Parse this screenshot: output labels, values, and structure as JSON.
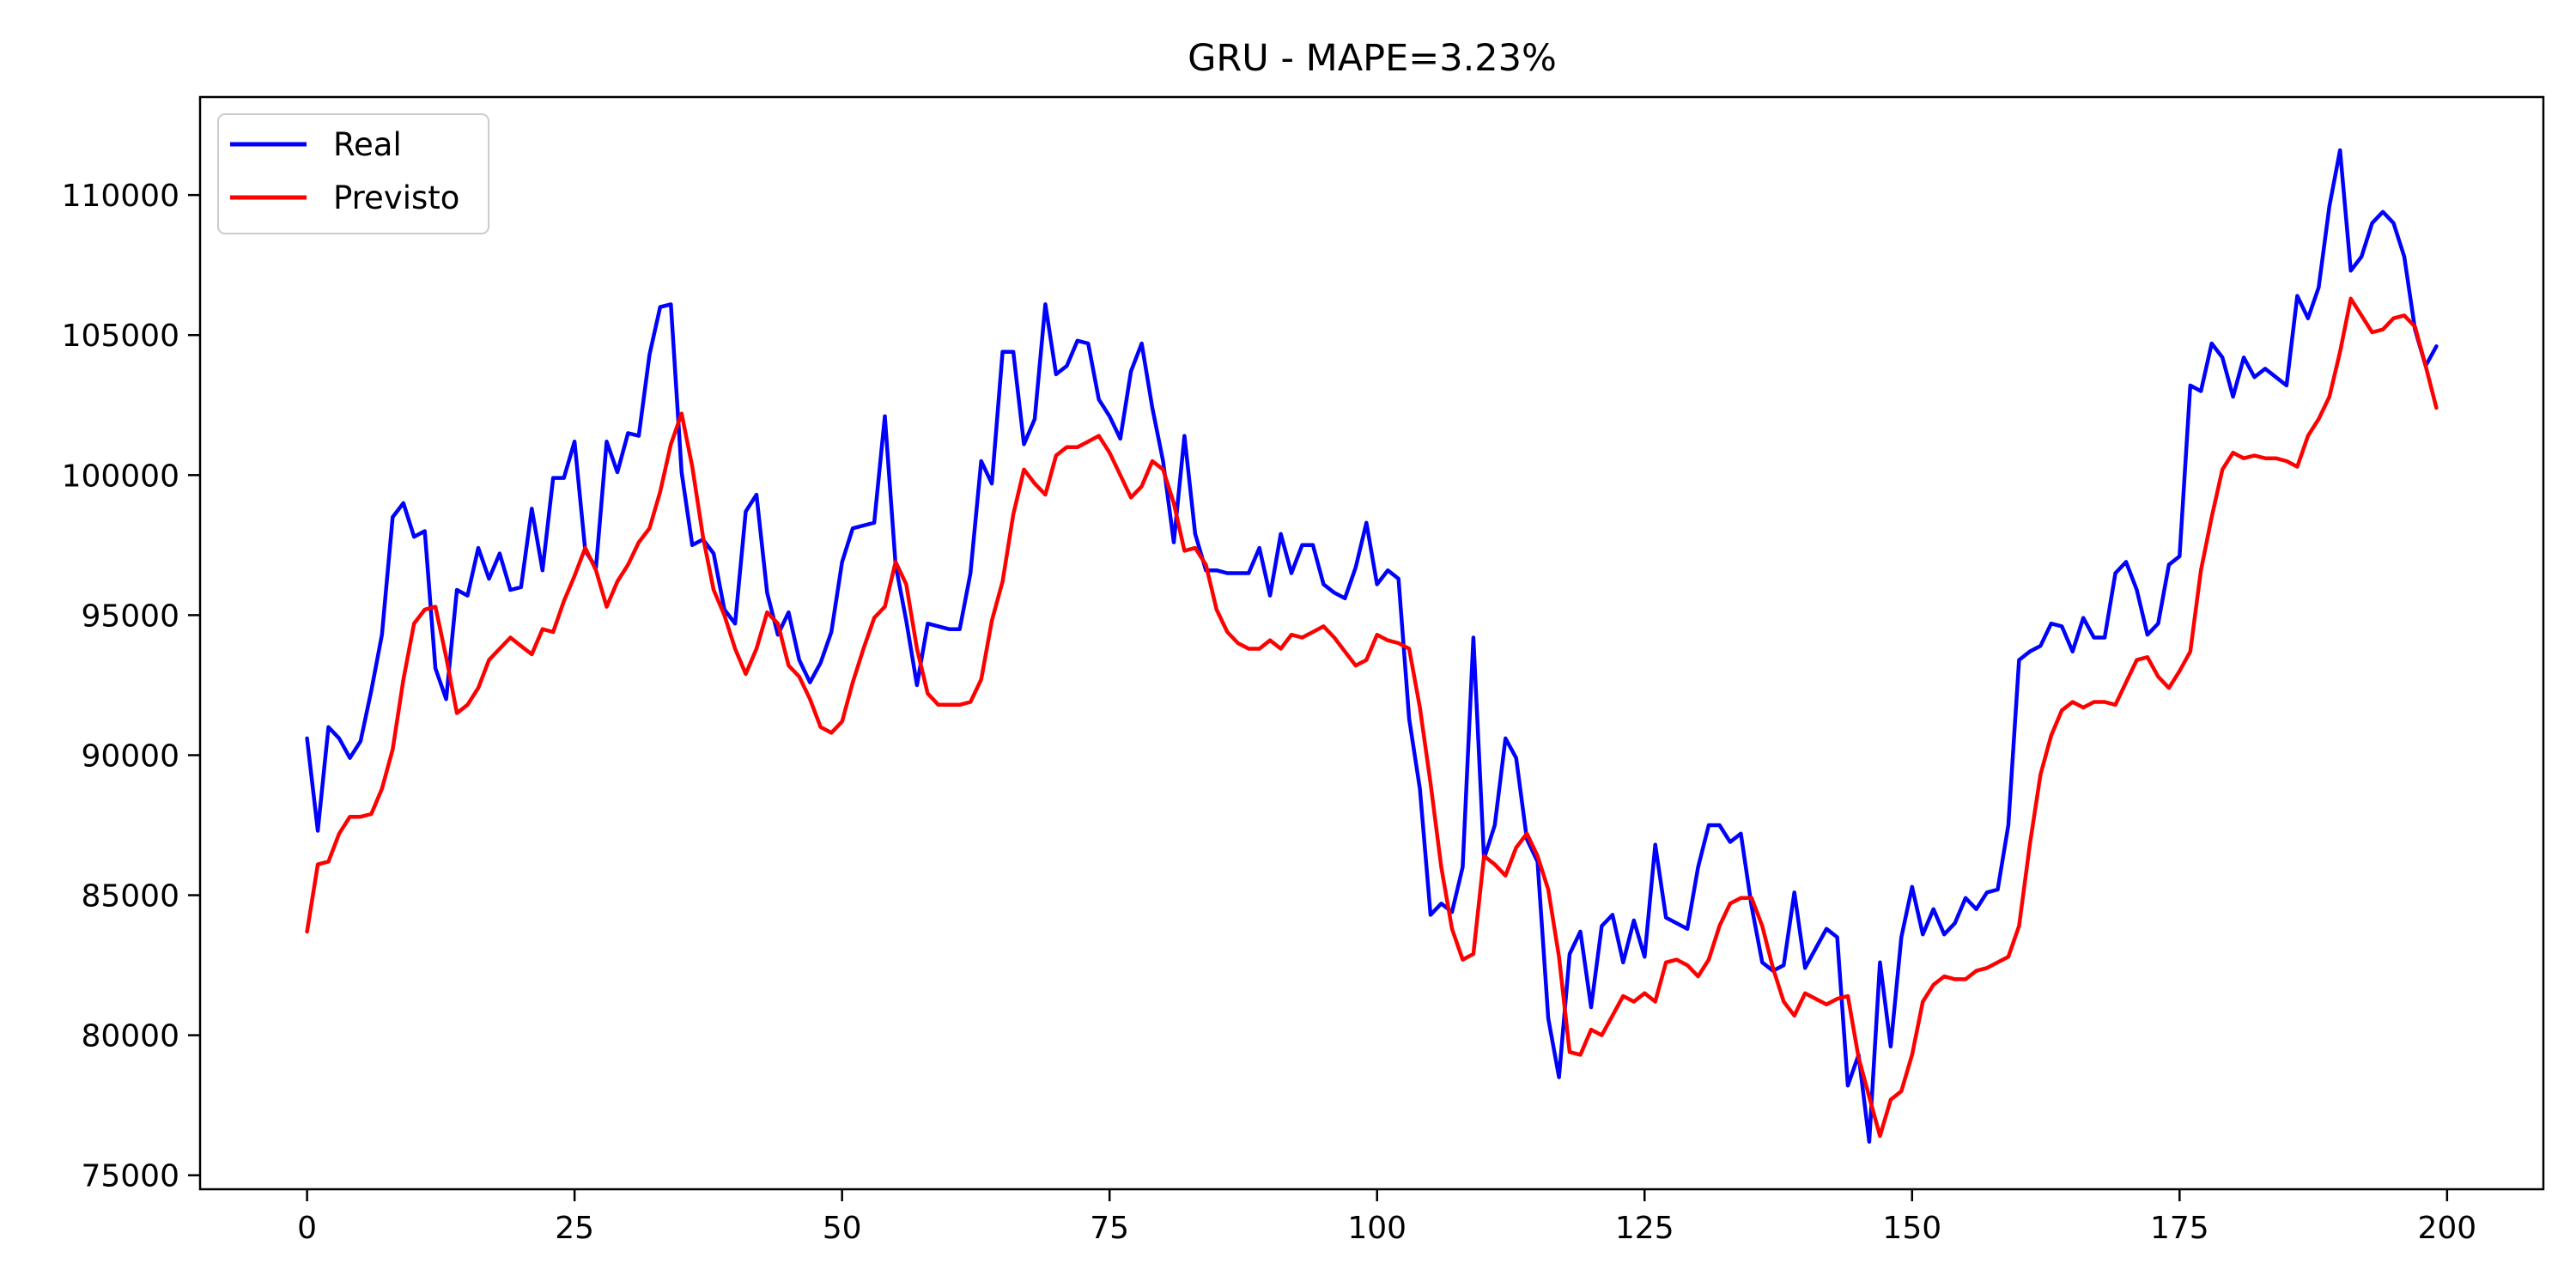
{
  "chart_data": {
    "type": "line",
    "title": "GRU - MAPE=3.23%",
    "xlabel": "",
    "ylabel": "",
    "xlim": [
      -10,
      209
    ],
    "ylim": [
      74500,
      113500
    ],
    "x_ticks": [
      0,
      25,
      50,
      75,
      100,
      125,
      150,
      175,
      200
    ],
    "y_ticks": [
      75000,
      80000,
      85000,
      90000,
      95000,
      100000,
      105000,
      110000
    ],
    "grid": false,
    "legend_position": "upper-left",
    "series": [
      {
        "name": "Real",
        "color": "#0000ff",
        "values": [
          90600,
          87300,
          91000,
          90600,
          89900,
          90500,
          92300,
          94300,
          98500,
          99000,
          97800,
          98000,
          93100,
          92000,
          95900,
          95700,
          97400,
          96300,
          97200,
          95900,
          96000,
          98800,
          96600,
          99900,
          99900,
          101200,
          97300,
          96700,
          101200,
          100100,
          101500,
          101400,
          104300,
          106000,
          106100,
          100100,
          97500,
          97700,
          97200,
          95200,
          94700,
          98700,
          99300,
          95800,
          94300,
          95100,
          93400,
          92600,
          93300,
          94400,
          96900,
          98100,
          98200,
          98300,
          102100,
          96800,
          94800,
          92500,
          94700,
          94600,
          94500,
          94500,
          96500,
          100500,
          99700,
          104400,
          104400,
          101100,
          102000,
          106100,
          103600,
          103900,
          104800,
          104700,
          102700,
          102100,
          101300,
          103700,
          104700,
          102400,
          100500,
          97600,
          101400,
          97900,
          96600,
          96600,
          96500,
          96500,
          96500,
          97400,
          95700,
          97900,
          96500,
          97500,
          97500,
          96100,
          95800,
          95600,
          96700,
          98300,
          96100,
          96600,
          96300,
          91300,
          88800,
          84300,
          84700,
          84400,
          86000,
          94200,
          86300,
          87500,
          90600,
          89900,
          87000,
          86200,
          80600,
          78500,
          82900,
          83700,
          81000,
          83900,
          84300,
          82600,
          84100,
          82800,
          86800,
          84200,
          84000,
          83800,
          86000,
          87500,
          87500,
          86900,
          87200,
          84600,
          82600,
          82300,
          82500,
          85100,
          82400,
          83100,
          83800,
          83500,
          78200,
          79300,
          76200,
          82600,
          79600,
          83500,
          85300,
          83600,
          84500,
          83600,
          84000,
          84900,
          84500,
          85100,
          85200,
          87500,
          93400,
          93700,
          93900,
          94700,
          94600,
          93700,
          94900,
          94200,
          94200,
          96500,
          96900,
          95900,
          94300,
          94700,
          96800,
          97100,
          103200,
          103000,
          104700,
          104200,
          102800,
          104200,
          103500,
          103800,
          103500,
          103200,
          106400,
          105600,
          106700,
          109600,
          111600,
          107300,
          107800,
          109000,
          109400,
          109000,
          107800,
          105200,
          103900,
          104600
        ]
      },
      {
        "name": "Previsto",
        "color": "#ff0000",
        "values": [
          83700,
          86100,
          86200,
          87200,
          87800,
          87800,
          87900,
          88800,
          90200,
          92700,
          94700,
          95200,
          95300,
          93500,
          91500,
          91800,
          92400,
          93400,
          93800,
          94200,
          93900,
          93600,
          94500,
          94400,
          95500,
          96400,
          97400,
          96600,
          95300,
          96200,
          96800,
          97600,
          98100,
          99400,
          101100,
          102200,
          100300,
          97800,
          95900,
          95000,
          93800,
          92900,
          93800,
          95100,
          94700,
          93200,
          92800,
          92000,
          91000,
          90800,
          91200,
          92600,
          93800,
          94900,
          95300,
          96900,
          96100,
          93800,
          92200,
          91800,
          91800,
          91800,
          91900,
          92700,
          94800,
          96200,
          98600,
          100200,
          99700,
          99300,
          100700,
          101000,
          101000,
          101200,
          101400,
          100800,
          100000,
          99200,
          99600,
          100500,
          100200,
          99000,
          97300,
          97400,
          96800,
          95200,
          94400,
          94000,
          93800,
          93800,
          94100,
          93800,
          94300,
          94200,
          94400,
          94600,
          94200,
          93700,
          93200,
          93400,
          94300,
          94100,
          94000,
          93800,
          91700,
          89000,
          86000,
          83800,
          82700,
          82900,
          86400,
          86100,
          85700,
          86700,
          87200,
          86400,
          85200,
          82800,
          79400,
          79300,
          80200,
          80000,
          80700,
          81400,
          81200,
          81500,
          81200,
          82600,
          82700,
          82500,
          82100,
          82700,
          83900,
          84700,
          84900,
          84900,
          83900,
          82400,
          81200,
          80700,
          81500,
          81300,
          81100,
          81300,
          81400,
          79200,
          77800,
          76400,
          77700,
          78000,
          79300,
          81200,
          81800,
          82100,
          82000,
          82000,
          82300,
          82400,
          82600,
          82800,
          83900,
          86800,
          89300,
          90700,
          91600,
          91900,
          91700,
          91900,
          91900,
          91800,
          92600,
          93400,
          93500,
          92800,
          92400,
          93000,
          93700,
          96600,
          98500,
          100200,
          100800,
          100600,
          100700,
          100600,
          100600,
          100500,
          100300,
          101400,
          102000,
          102800,
          104400,
          106300,
          105700,
          105100,
          105200,
          105600,
          105700,
          105300,
          103900,
          102400
        ]
      }
    ]
  }
}
